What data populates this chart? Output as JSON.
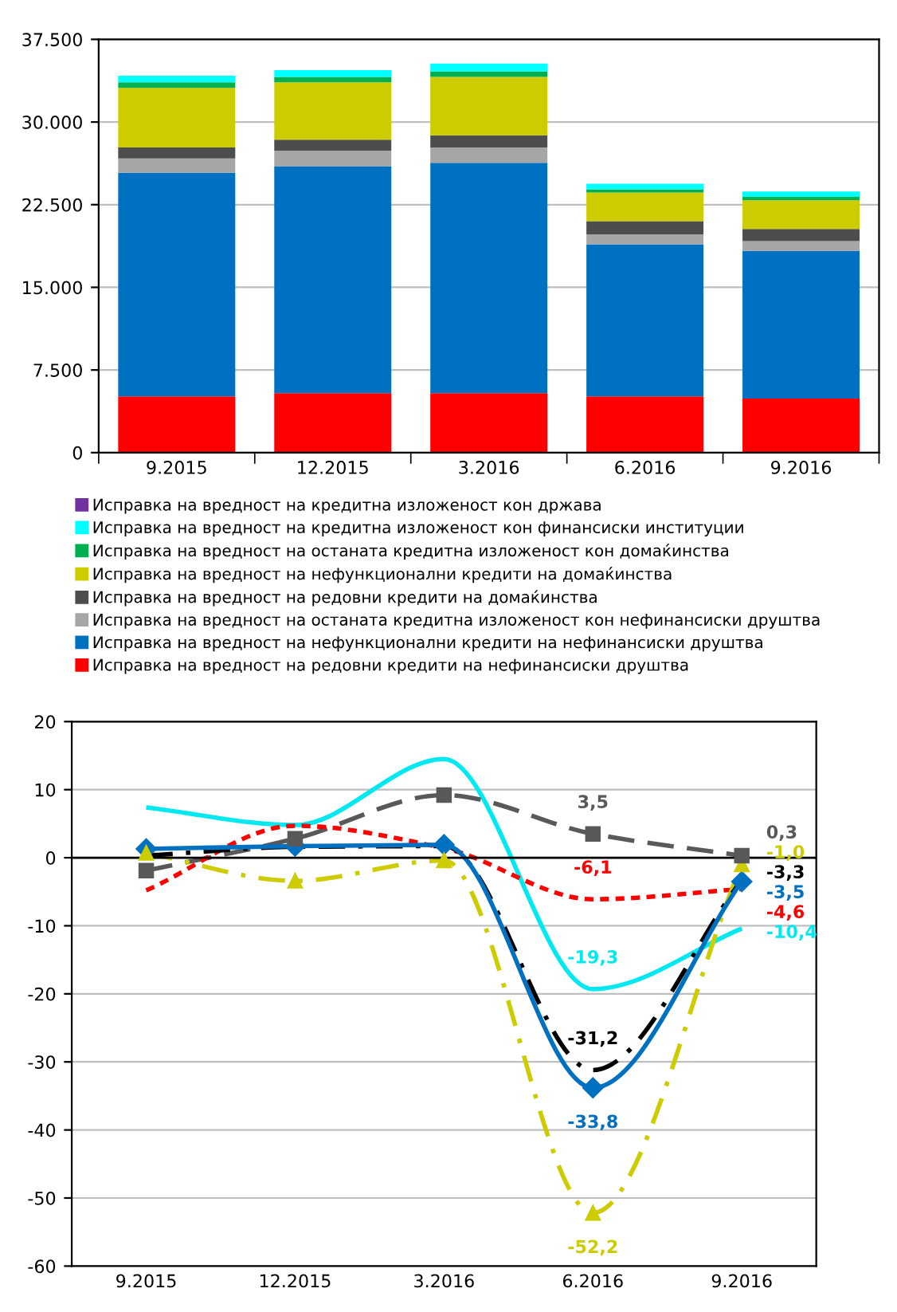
{
  "chart_data": [
    {
      "type": "bar",
      "stacked": true,
      "categories": [
        "9.2015",
        "12.2015",
        "3.2016",
        "6.2016",
        "9.2016"
      ],
      "ylim": [
        0,
        37500
      ],
      "yticks": [
        0,
        {
          "value": 7500,
          "label": "7.500"
        },
        {
          "value": 15000,
          "label": "15.000"
        },
        {
          "value": 22500,
          "label": "22.500"
        },
        {
          "value": 30000,
          "label": "30.000"
        },
        {
          "value": 37500,
          "label": "37.500"
        }
      ],
      "grid": "y",
      "legend": "bottom",
      "series": [
        {
          "name": "Исправка на вредност на редовни кредити на нефинансиски друштва",
          "color": "#ff0000",
          "values": [
            5100,
            5400,
            5400,
            5100,
            4900
          ]
        },
        {
          "name": "Исправка на вредност на нефункционални кредити на нефинансиски друштва",
          "color": "#0070c0",
          "values": [
            20300,
            20600,
            20900,
            13800,
            13400
          ]
        },
        {
          "name": "Исправка на вредност на останата кредитна изложеност кон нефинансиски друштва",
          "color": "#a6a6a6",
          "values": [
            1300,
            1400,
            1400,
            900,
            900
          ]
        },
        {
          "name": "Исправка на вредност на редовни кредити на домаќинства",
          "color": "#4d4d4d",
          "values": [
            1000,
            1000,
            1100,
            1200,
            1100
          ]
        },
        {
          "name": "Исправка на вредност на нефункционални кредити на домаќинства",
          "color": "#cccc00",
          "values": [
            5400,
            5200,
            5300,
            2600,
            2600
          ]
        },
        {
          "name": "Исправка на вредност на останата кредитна изложеност кон домаќинства",
          "color": "#00b050",
          "values": [
            500,
            500,
            500,
            300,
            300
          ]
        },
        {
          "name": "Исправка на вредност на кредитна изложеност кон финансиски институции",
          "color": "#00ffff",
          "values": [
            600,
            600,
            700,
            500,
            500
          ]
        },
        {
          "name": "Исправка на вредност на кредитна изложеност кон држава",
          "color": "#7030a0",
          "values": [
            0,
            0,
            0,
            0,
            0
          ]
        }
      ]
    },
    {
      "type": "line",
      "categories": [
        "9.2015",
        "12.2015",
        "3.2016",
        "6.2016",
        "9.2016"
      ],
      "ylim": [
        -60,
        20
      ],
      "yticks": [
        -60,
        -50,
        -40,
        -30,
        -20,
        -10,
        0,
        10,
        20
      ],
      "grid": "y",
      "ref_lines": [
        {
          "axis": "y",
          "value": 0,
          "color": "#000000"
        }
      ],
      "series": [
        {
          "color": "#00e8f0",
          "values": [
            7.4,
            4.8,
            14.5,
            -19.3,
            -10.4
          ],
          "value_labels": [
            null,
            null,
            null,
            "-19,3",
            "-10,4"
          ],
          "marker": "none",
          "line_style": "solid"
        },
        {
          "color": "#595959",
          "values": [
            -1.9,
            2.8,
            9.2,
            3.5,
            0.3
          ],
          "value_labels": [
            null,
            null,
            null,
            "3,5",
            "0,3"
          ],
          "marker": "square",
          "line_style": "dashed"
        },
        {
          "color": "#ff0000",
          "values": [
            -4.8,
            4.7,
            1.4,
            -6.1,
            -4.6
          ],
          "value_labels": [
            null,
            null,
            null,
            "-6,1",
            "-4,6"
          ],
          "marker": "none",
          "line_style": "dotted"
        },
        {
          "color": "#cccc00",
          "values": [
            0.7,
            -3.4,
            -0.4,
            -52.2,
            -1.0
          ],
          "value_labels": [
            null,
            null,
            null,
            "-52,2",
            "-1,0"
          ],
          "marker": "triangle",
          "line_style": "dashdot"
        },
        {
          "color": "#000000",
          "values": [
            0.3,
            1.6,
            1.7,
            -31.2,
            -3.3
          ],
          "value_labels": [
            null,
            null,
            null,
            "-31,2",
            "-3,3"
          ],
          "marker": "none",
          "line_style": "dashdot"
        },
        {
          "color": "#0070c0",
          "values": [
            1.3,
            1.7,
            1.9,
            -33.8,
            -3.5
          ],
          "value_labels": [
            null,
            null,
            null,
            "-33,8",
            "-3,5"
          ],
          "marker": "diamond",
          "line_style": "solid"
        }
      ]
    }
  ]
}
